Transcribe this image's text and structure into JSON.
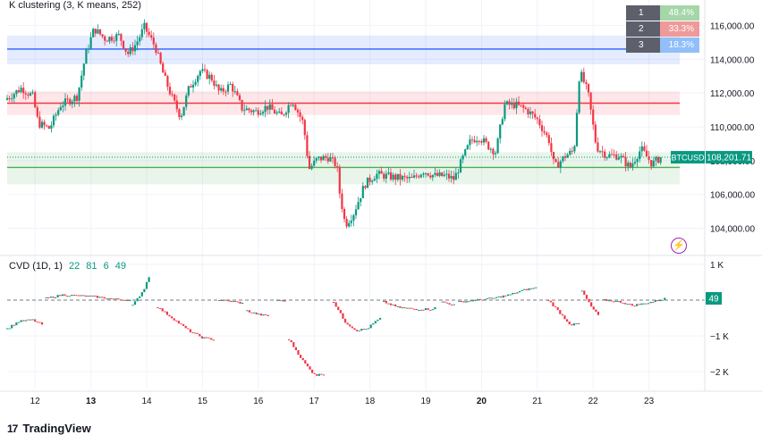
{
  "study_main": {
    "name": "K clustering (3, K means, 252)"
  },
  "study_sub": {
    "name": "CVD (1D, 1)",
    "values": [
      "22",
      "81",
      "6",
      "49"
    ]
  },
  "cluster_table": [
    {
      "rank": "1",
      "pct": "48.4%",
      "color": "#a5d6a7"
    },
    {
      "rank": "2",
      "pct": "33.3%",
      "color": "#ef9a9a"
    },
    {
      "rank": "3",
      "pct": "18.3%",
      "color": "#90bff9"
    }
  ],
  "branding": {
    "logo_mark": "17",
    "name": "TradingView"
  },
  "colors": {
    "up": "#089981",
    "down": "#f23645",
    "blue": "#2962ff",
    "red_line": "#f23645",
    "green_line": "#4caf50",
    "purple": "#9c27b0"
  },
  "chart_data": [
    {
      "type": "candlestick",
      "symbol": "BTCUSD",
      "last_price": 108201.71,
      "last_price_label": "108,201.71",
      "ylim": [
        102500,
        117500
      ],
      "y_ticks": [
        104000,
        106000,
        108000,
        110000,
        112000,
        114000,
        116000
      ],
      "y_tick_labels": [
        "104,000.00",
        "106,000.00",
        "108,000.00",
        "110,000.00",
        "112,000.00",
        "114,000.00",
        "116,000.00"
      ],
      "x_ticks": [
        12,
        13,
        14,
        15,
        16,
        17,
        18,
        19,
        20,
        21,
        22,
        23
      ],
      "x_tick_labels": [
        "12",
        "13",
        "14",
        "15",
        "16",
        "17",
        "18",
        "19",
        "20",
        "21",
        "22",
        "23"
      ],
      "x_bold": [
        "13",
        "20"
      ],
      "xlim": [
        11.5,
        24.0
      ],
      "bands": [
        {
          "name": "cluster-3",
          "low": 113700,
          "high": 115400,
          "level": 114600,
          "color": "#2962ff"
        },
        {
          "name": "cluster-2",
          "low": 110700,
          "high": 112100,
          "level": 111400,
          "color": "#f23645"
        },
        {
          "name": "cluster-1",
          "low": 106600,
          "high": 108500,
          "level": 107600,
          "color": "#4caf50"
        }
      ],
      "anchors": [
        [
          11.5,
          111600
        ],
        [
          11.8,
          112300
        ],
        [
          12.0,
          111800
        ],
        [
          12.1,
          110200
        ],
        [
          12.3,
          109900
        ],
        [
          12.5,
          111300
        ],
        [
          12.8,
          111800
        ],
        [
          12.95,
          114300
        ],
        [
          13.1,
          115800
        ],
        [
          13.3,
          115200
        ],
        [
          13.55,
          115400
        ],
        [
          13.7,
          114300
        ],
        [
          13.85,
          114900
        ],
        [
          14.0,
          115900
        ],
        [
          14.2,
          114700
        ],
        [
          14.35,
          113000
        ],
        [
          14.5,
          111700
        ],
        [
          14.65,
          110600
        ],
        [
          14.8,
          112300
        ],
        [
          15.0,
          113300
        ],
        [
          15.2,
          112900
        ],
        [
          15.35,
          112000
        ],
        [
          15.55,
          112500
        ],
        [
          15.75,
          111100
        ],
        [
          16.0,
          110900
        ],
        [
          16.2,
          111200
        ],
        [
          16.45,
          110600
        ],
        [
          16.65,
          111600
        ],
        [
          16.85,
          110200
        ],
        [
          16.95,
          107500
        ],
        [
          17.1,
          108100
        ],
        [
          17.3,
          108200
        ],
        [
          17.45,
          107700
        ],
        [
          17.5,
          106100
        ],
        [
          17.6,
          104200
        ],
        [
          17.75,
          104900
        ],
        [
          17.95,
          106600
        ],
        [
          18.15,
          107200
        ],
        [
          18.5,
          107000
        ],
        [
          18.8,
          106900
        ],
        [
          19.0,
          107400
        ],
        [
          19.2,
          107100
        ],
        [
          19.4,
          107100
        ],
        [
          19.55,
          106900
        ],
        [
          19.7,
          108100
        ],
        [
          19.85,
          109200
        ],
        [
          20.0,
          109400
        ],
        [
          20.15,
          108900
        ],
        [
          20.3,
          108500
        ],
        [
          20.45,
          111300
        ],
        [
          20.65,
          111300
        ],
        [
          20.85,
          111000
        ],
        [
          21.05,
          110400
        ],
        [
          21.25,
          109200
        ],
        [
          21.35,
          107600
        ],
        [
          21.55,
          108300
        ],
        [
          21.7,
          108600
        ],
        [
          21.8,
          113300
        ],
        [
          21.95,
          112000
        ],
        [
          22.1,
          108800
        ],
        [
          22.3,
          108300
        ],
        [
          22.5,
          108300
        ],
        [
          22.7,
          107600
        ],
        [
          22.9,
          108700
        ],
        [
          23.1,
          107800
        ],
        [
          23.25,
          108200
        ]
      ]
    },
    {
      "type": "line",
      "name": "CVD",
      "last_value": 49,
      "last_value_label": "49",
      "zero": 0,
      "ylim": [
        -2500,
        1200
      ],
      "y_ticks": [
        1000,
        -1000,
        -2000
      ],
      "y_tick_labels": [
        "1 K",
        "−1 K",
        "−2 K"
      ],
      "segments": [
        [
          [
            11.5,
            -800
          ],
          [
            11.7,
            -600
          ],
          [
            11.95,
            -550
          ],
          [
            12.15,
            -700
          ]
        ],
        [
          [
            12.2,
            50
          ],
          [
            12.5,
            150
          ],
          [
            12.8,
            120
          ],
          [
            13.05,
            100
          ],
          [
            13.4,
            30
          ],
          [
            13.7,
            0
          ]
        ],
        [
          [
            13.75,
            -150
          ],
          [
            13.95,
            300
          ],
          [
            14.05,
            700
          ]
        ],
        [
          [
            14.2,
            -200
          ],
          [
            14.5,
            -550
          ],
          [
            14.75,
            -850
          ],
          [
            15.0,
            -1050
          ],
          [
            15.2,
            -1100
          ]
        ],
        [
          [
            15.3,
            0
          ],
          [
            15.6,
            -50
          ],
          [
            15.75,
            -100
          ]
        ],
        [
          [
            15.8,
            -300
          ],
          [
            16.0,
            -400
          ],
          [
            16.2,
            -450
          ]
        ],
        [
          [
            16.35,
            0
          ],
          [
            16.5,
            -50
          ]
        ],
        [
          [
            16.55,
            -1100
          ],
          [
            16.8,
            -1700
          ],
          [
            16.95,
            -2000
          ],
          [
            17.05,
            -2100
          ],
          [
            17.2,
            -2050
          ]
        ],
        [
          [
            17.35,
            -50
          ],
          [
            17.55,
            -600
          ],
          [
            17.75,
            -850
          ],
          [
            17.95,
            -800
          ],
          [
            18.1,
            -600
          ],
          [
            18.2,
            -500
          ]
        ],
        [
          [
            18.25,
            -50
          ],
          [
            18.5,
            -200
          ],
          [
            18.8,
            -250
          ],
          [
            19.1,
            -250
          ],
          [
            19.2,
            -200
          ]
        ],
        [
          [
            19.3,
            -50
          ],
          [
            19.55,
            -150
          ]
        ],
        [
          [
            19.6,
            -50
          ],
          [
            19.9,
            0
          ],
          [
            20.2,
            50
          ],
          [
            20.5,
            150
          ],
          [
            20.8,
            300
          ],
          [
            21.0,
            350
          ]
        ],
        [
          [
            21.2,
            0
          ],
          [
            21.4,
            -350
          ],
          [
            21.6,
            -700
          ],
          [
            21.75,
            -650
          ]
        ],
        [
          [
            21.8,
            250
          ],
          [
            21.95,
            -150
          ],
          [
            22.1,
            -450
          ]
        ],
        [
          [
            22.2,
            0
          ],
          [
            22.5,
            -50
          ],
          [
            22.7,
            -150
          ],
          [
            22.9,
            -100
          ],
          [
            23.1,
            -30
          ],
          [
            23.3,
            49
          ]
        ]
      ]
    }
  ]
}
